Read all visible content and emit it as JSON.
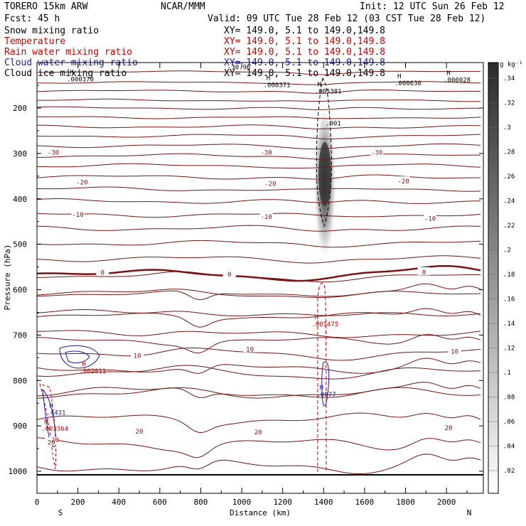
{
  "header": {
    "model": "TORERO  15km ARW",
    "center": "NCAR/MMM",
    "init": "Init: 12 UTC Sun 26 Feb 12",
    "fcst": "Fcst:   45 h",
    "valid": "Valid: 09 UTC Tue 28 Feb 12 (03 CST Tue 28 Feb 12)"
  },
  "fields": [
    {
      "name": "Snow mixing ratio",
      "xy": "XY= 149.0,  5.1 to 149.0,149.8",
      "color": "#000000"
    },
    {
      "name": "Temperature",
      "xy": "XY= 149.0,  5.1 to 149.0,149.8",
      "color": "#cc0000"
    },
    {
      "name": "Rain water mixing ratio",
      "xy": "XY= 149.0,  5.1 to 149.0,149.8",
      "color": "#cc0000"
    },
    {
      "name": "Cloud water mixing ratio",
      "xy": "XY= 149.0,  5.1 to 149.0,149.8",
      "color": "#1a1aa6"
    },
    {
      "name": "Cloud ice mixing ratio",
      "xy": "XY= 149.0,  5.1 to 149.0,149.8",
      "color": "#000000"
    }
  ],
  "chart_data": {
    "type": "contour",
    "xlabel": "Distance (km)",
    "ylabel": "Pressure (hPa)",
    "x_ticks": [
      0,
      200,
      400,
      600,
      800,
      1000,
      1200,
      1400,
      1600,
      1800,
      2000
    ],
    "y_ticks": [
      200,
      300,
      400,
      500,
      600,
      700,
      800,
      900,
      1000
    ],
    "x_range": [
      0,
      2180
    ],
    "y_range_hPa": [
      1050,
      100
    ],
    "end_labels": {
      "left": "S",
      "right": "N"
    },
    "colorbar": {
      "unit": "g kg⁻¹",
      "ticks": [
        ".02",
        ".04",
        ".06",
        ".08",
        ".1",
        ".12",
        ".14",
        ".16",
        ".18",
        ".2",
        ".22",
        ".24",
        ".26",
        ".28",
        ".3",
        ".32",
        ".34"
      ]
    },
    "temperature_levels": [
      -30,
      -20,
      -10,
      0,
      10,
      20
    ],
    "temperature_labels": [
      {
        "text": "-30",
        "x": 80,
        "p": 296
      },
      {
        "text": "-30",
        "x": 1120,
        "p": 296
      },
      {
        "text": "-30",
        "x": 1660,
        "p": 296
      },
      {
        "text": "-20",
        "x": 220,
        "p": 362
      },
      {
        "text": "-20",
        "x": 1140,
        "p": 365
      },
      {
        "text": "-20",
        "x": 1790,
        "p": 360
      },
      {
        "text": "-10",
        "x": 200,
        "p": 433
      },
      {
        "text": "-10",
        "x": 1120,
        "p": 438
      },
      {
        "text": "-10",
        "x": 1920,
        "p": 442
      },
      {
        "text": "0",
        "x": 320,
        "p": 561
      },
      {
        "text": "0",
        "x": 940,
        "p": 565
      },
      {
        "text": "0",
        "x": 1890,
        "p": 560
      },
      {
        "text": "10",
        "x": 490,
        "p": 744
      },
      {
        "text": "10",
        "x": 1040,
        "p": 730
      },
      {
        "text": "10",
        "x": 2040,
        "p": 735
      },
      {
        "text": "20",
        "x": 500,
        "p": 911
      },
      {
        "text": "20",
        "x": 1080,
        "p": 912
      },
      {
        "text": "20",
        "x": 2010,
        "p": 903
      },
      {
        "text": "20",
        "x": 70,
        "p": 935
      }
    ],
    "extrema": [
      {
        "mark": "H",
        "value": ".000370",
        "x": 160,
        "p": 126,
        "color": "#000000"
      },
      {
        "mark": "H",
        "value": ".000371",
        "x": 1120,
        "p": 138,
        "color": "#000000"
      },
      {
        "mark": "H",
        "value": ".005381",
        "x": 1370,
        "p": 152,
        "color": "#000000"
      },
      {
        "mark": "H",
        "value": ".000630",
        "x": 1760,
        "p": 134,
        "color": "#000000"
      },
      {
        "mark": "H",
        "value": ".000028",
        "x": 2000,
        "p": 127,
        "color": "#000000"
      },
      {
        "mark": "H",
        "value": ".005475",
        "x": 1355,
        "p": 665,
        "color": "#cc0000"
      },
      {
        "mark": "H",
        "value": ".002011",
        "x": 220,
        "p": 768,
        "color": "#cc0000"
      },
      {
        "mark": "H",
        "value": ".003364",
        "x": 35,
        "p": 895,
        "color": "#cc0000"
      },
      {
        "mark": "H",
        "value": ".4431",
        "x": 60,
        "p": 860,
        "color": "#1a1aa6"
      },
      {
        "mark": "H",
        "value": ".0977",
        "x": 1380,
        "p": 820,
        "color": "#1a1aa6"
      }
    ],
    "extra_labels": [
      {
        "text": ".001",
        "x": 1410,
        "p": 238,
        "color": "#000000"
      },
      {
        "text": "-30.96",
        "x": 930,
        "p": 115,
        "color": "#000000"
      },
      {
        "text": "20",
        "x": 70,
        "p": 936,
        "color": "#cc0000"
      }
    ]
  }
}
